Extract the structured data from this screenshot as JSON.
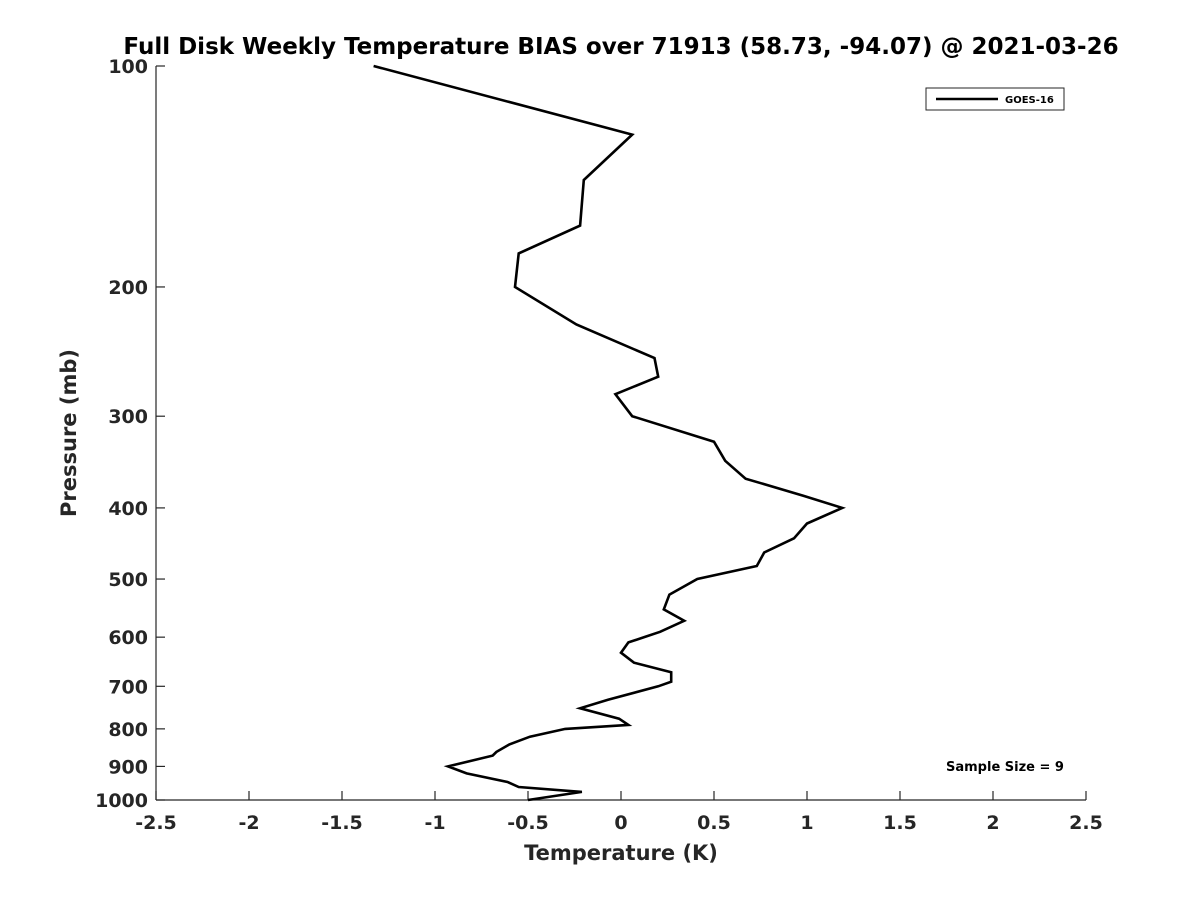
{
  "chart_data": {
    "type": "line",
    "title": "Full Disk Weekly Temperature BIAS over 71913 (58.73, -94.07) @ 2021-03-26",
    "xlabel": "Temperature (K)",
    "ylabel": "Pressure (mb)",
    "xlim": [
      -2.5,
      2.5
    ],
    "ylim": [
      100,
      1000
    ],
    "y_scale": "log",
    "y_reversed": true,
    "grid": false,
    "legend_position": "top-right",
    "annotation": "Sample Size = 9",
    "x_ticks": [
      -2.5,
      -2,
      -1.5,
      -1,
      -0.5,
      0,
      0.5,
      1,
      1.5,
      2,
      2.5
    ],
    "x_tick_labels": [
      "-2.5",
      "-2",
      "-1.5",
      "-1",
      "-0.5",
      "0",
      "0.5",
      "1",
      "1.5",
      "2",
      "2.5"
    ],
    "y_ticks": [
      100,
      200,
      300,
      400,
      500,
      600,
      700,
      800,
      900,
      1000
    ],
    "y_tick_labels": [
      "100",
      "200",
      "300",
      "400",
      "500",
      "600",
      "700",
      "800",
      "900",
      "1000"
    ],
    "series": [
      {
        "name": "GOES-16",
        "color": "#000000",
        "points": [
          {
            "x": -1.33,
            "y": 100
          },
          {
            "x": 0.06,
            "y": 124
          },
          {
            "x": -0.2,
            "y": 143
          },
          {
            "x": -0.22,
            "y": 165
          },
          {
            "x": -0.55,
            "y": 180
          },
          {
            "x": -0.57,
            "y": 200
          },
          {
            "x": -0.24,
            "y": 225
          },
          {
            "x": 0.18,
            "y": 250
          },
          {
            "x": 0.2,
            "y": 265
          },
          {
            "x": -0.03,
            "y": 280
          },
          {
            "x": 0.06,
            "y": 300
          },
          {
            "x": 0.5,
            "y": 325
          },
          {
            "x": 0.56,
            "y": 345
          },
          {
            "x": 0.67,
            "y": 365
          },
          {
            "x": 0.98,
            "y": 385
          },
          {
            "x": 1.19,
            "y": 400
          },
          {
            "x": 1.0,
            "y": 420
          },
          {
            "x": 0.93,
            "y": 440
          },
          {
            "x": 0.77,
            "y": 460
          },
          {
            "x": 0.73,
            "y": 480
          },
          {
            "x": 0.41,
            "y": 500
          },
          {
            "x": 0.26,
            "y": 525
          },
          {
            "x": 0.23,
            "y": 550
          },
          {
            "x": 0.34,
            "y": 570
          },
          {
            "x": 0.21,
            "y": 590
          },
          {
            "x": 0.04,
            "y": 610
          },
          {
            "x": 0.0,
            "y": 630
          },
          {
            "x": 0.07,
            "y": 650
          },
          {
            "x": 0.27,
            "y": 670
          },
          {
            "x": 0.27,
            "y": 690
          },
          {
            "x": 0.2,
            "y": 700
          },
          {
            "x": -0.07,
            "y": 730
          },
          {
            "x": -0.22,
            "y": 750
          },
          {
            "x": -0.01,
            "y": 775
          },
          {
            "x": 0.04,
            "y": 790
          },
          {
            "x": -0.3,
            "y": 800
          },
          {
            "x": -0.49,
            "y": 820
          },
          {
            "x": -0.6,
            "y": 840
          },
          {
            "x": -0.67,
            "y": 860
          },
          {
            "x": -0.69,
            "y": 870
          },
          {
            "x": -0.93,
            "y": 900
          },
          {
            "x": -0.83,
            "y": 920
          },
          {
            "x": -0.61,
            "y": 945
          },
          {
            "x": -0.55,
            "y": 960
          },
          {
            "x": -0.21,
            "y": 975
          },
          {
            "x": -0.5,
            "y": 1000
          }
        ]
      }
    ]
  }
}
